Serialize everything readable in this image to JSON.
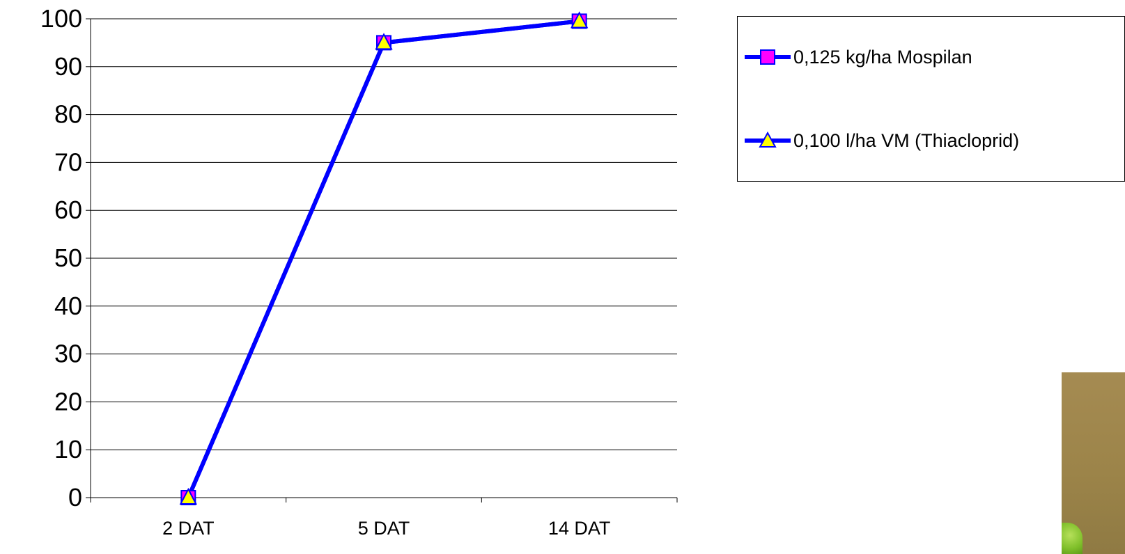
{
  "colors": {
    "line": "#0000ff",
    "marker_square": "#ff00ff",
    "marker_triangle": "#ffff00",
    "gridline": "#000000",
    "background": "#ffffff"
  },
  "chart_data": {
    "type": "line",
    "categories": [
      "2 DAT",
      "5 DAT",
      "14 DAT"
    ],
    "series": [
      {
        "name": "0,125 kg/ha Mospilan",
        "marker": "square",
        "values": [
          0,
          95,
          99.5
        ]
      },
      {
        "name": "0,100 l/ha VM (Thiacloprid)",
        "marker": "triangle",
        "values": [
          0,
          95,
          99.5
        ]
      }
    ],
    "title": "",
    "xlabel": "",
    "ylabel": "",
    "ylim": [
      0,
      100
    ],
    "yticks": [
      0,
      10,
      20,
      30,
      40,
      50,
      60,
      70,
      80,
      90,
      100
    ],
    "grid": "horizontal",
    "legend_position": "right"
  },
  "photo": {
    "icon": "aphid-on-leaf-photo"
  }
}
